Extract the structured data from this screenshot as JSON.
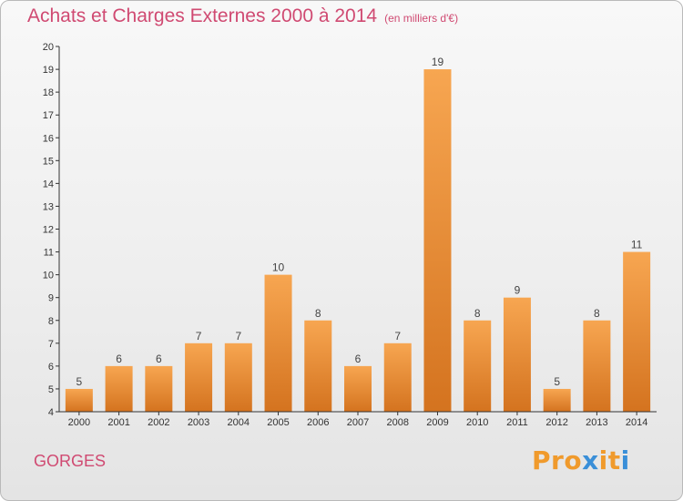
{
  "header": {
    "title": "Achats et Charges Externes 2000 à 2014",
    "unit": "(en milliers d'€)"
  },
  "footer": {
    "city": "GORGES",
    "logo": "Proxiti"
  },
  "colors": {
    "title": "#d04a72",
    "bar_top": "#f7a651",
    "bar_bottom": "#d4731f",
    "axis": "#333333",
    "logo": [
      "#f09a2c",
      "#f09a2c",
      "#f09a2c",
      "#3a8fd8",
      "#f09a2c",
      "#f09a2c",
      "#3a8fd8"
    ]
  },
  "chart_data": {
    "type": "bar",
    "title": "Achats et Charges Externes 2000 à 2014",
    "xlabel": "",
    "ylabel": "",
    "categories": [
      "2000",
      "2001",
      "2002",
      "2003",
      "2004",
      "2005",
      "2006",
      "2007",
      "2008",
      "2009",
      "2010",
      "2011",
      "2012",
      "2013",
      "2014"
    ],
    "values": [
      5,
      6,
      6,
      7,
      7,
      10,
      8,
      6,
      7,
      19,
      8,
      9,
      5,
      8,
      11
    ],
    "ylim": [
      4,
      20
    ],
    "yticks": [
      4,
      5,
      6,
      7,
      8,
      9,
      10,
      11,
      12,
      13,
      14,
      15,
      16,
      17,
      18,
      19,
      20
    ],
    "grid": false,
    "data_labels": true
  }
}
